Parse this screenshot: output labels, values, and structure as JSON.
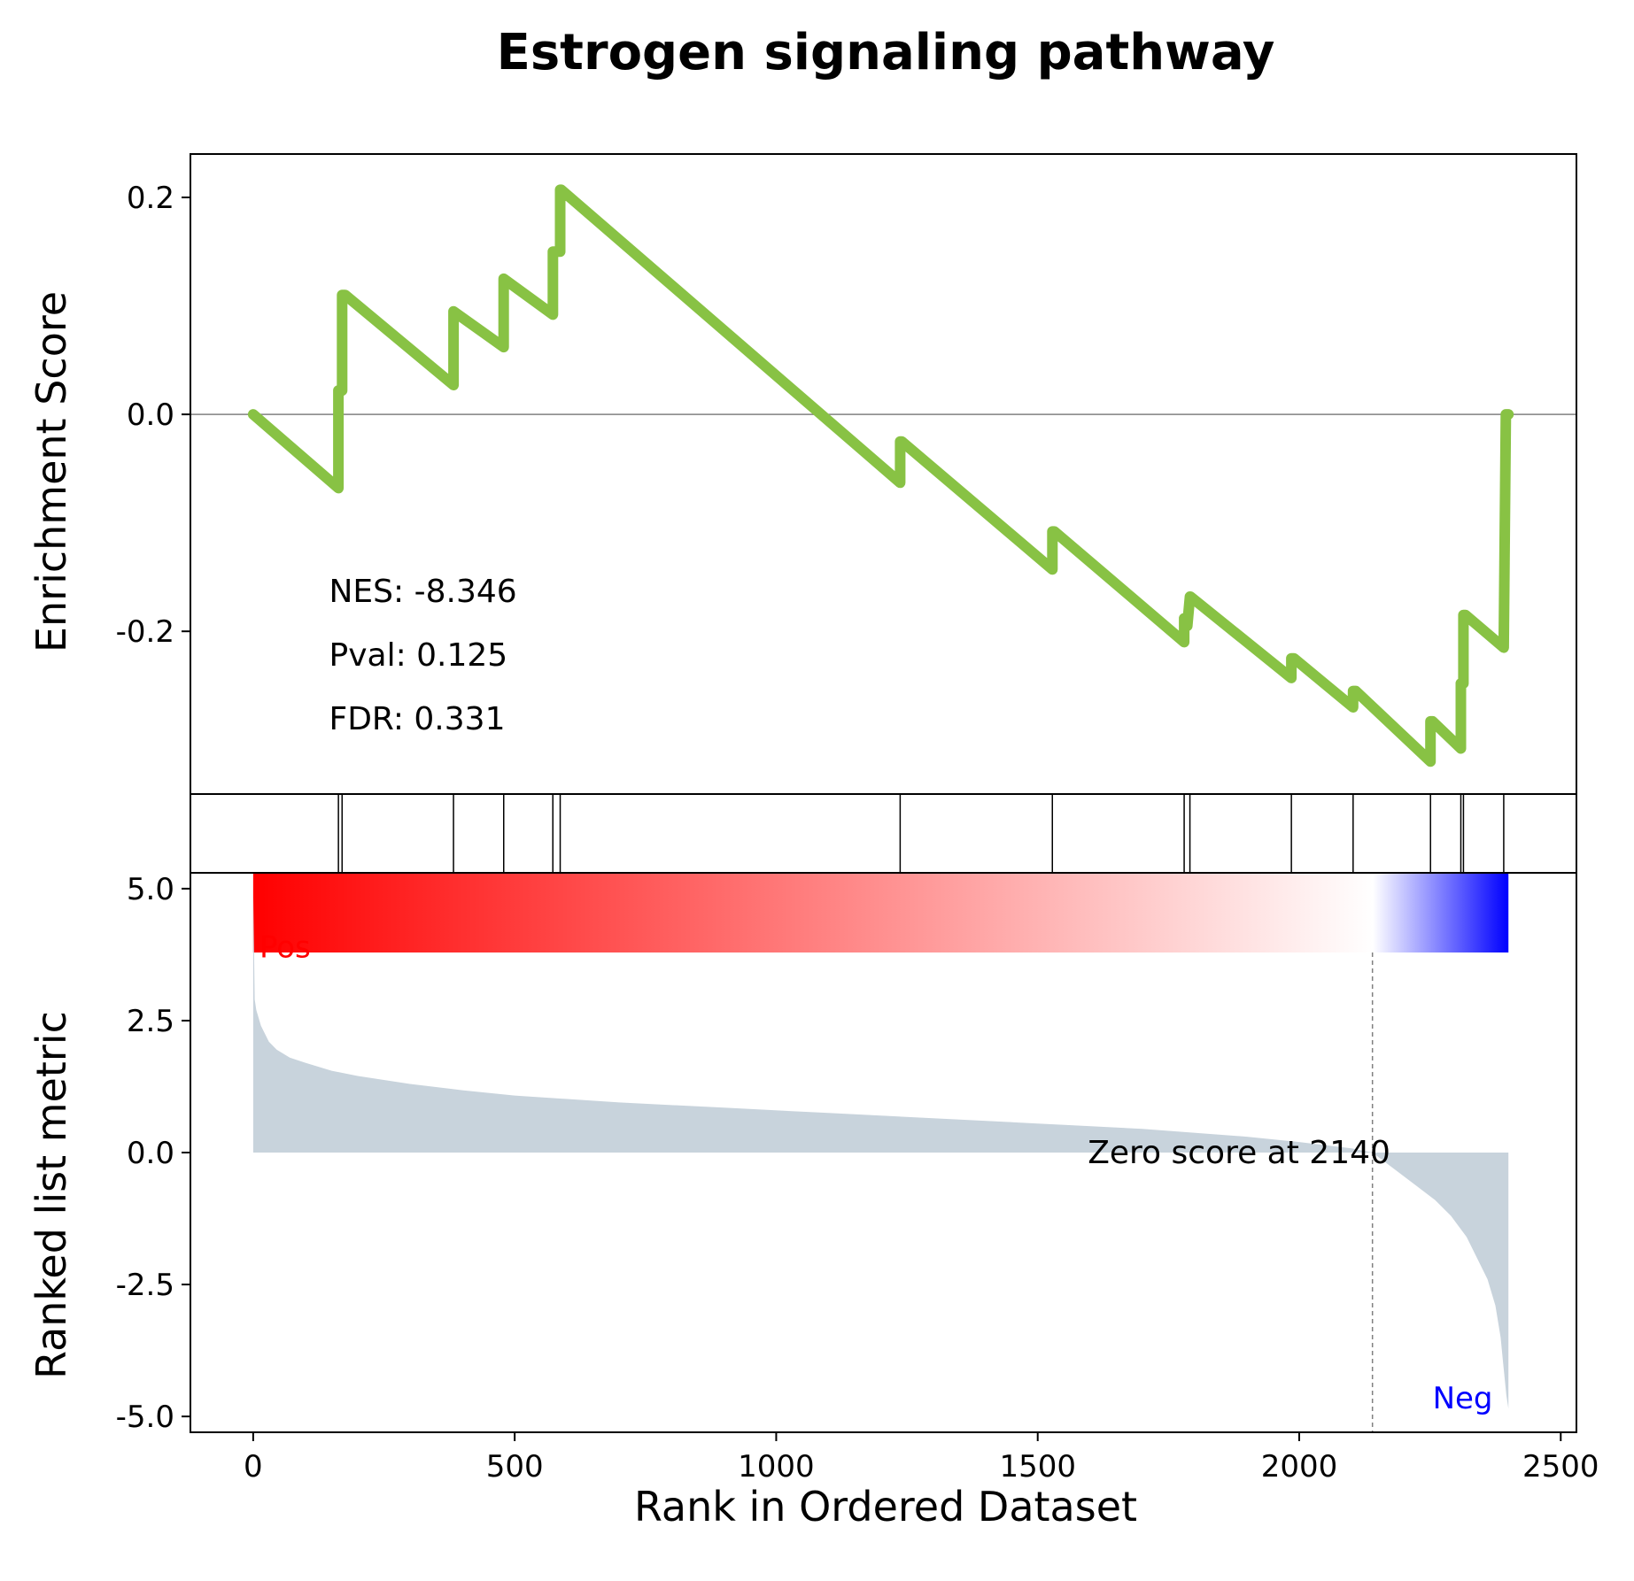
{
  "chart_data": [
    {
      "type": "line",
      "title": "Estrogen signaling pathway",
      "xlabel": "",
      "ylabel": "Enrichment Score",
      "xlim": [
        -120,
        2530
      ],
      "ylim": [
        -0.35,
        0.24
      ],
      "yticks": [
        0.2,
        0.0,
        -0.2
      ],
      "ytick_labels": [
        "0.2",
        "0.0",
        "-0.2"
      ],
      "zero_line": true,
      "series": [
        {
          "color": "#88c244",
          "x": [
            0,
            163,
            163,
            170,
            170,
            176,
            383,
            383,
            479,
            479,
            573,
            573,
            587,
            587,
            589,
            1237,
            1237,
            1240,
            1528,
            1528,
            1532,
            1780,
            1780,
            1786,
            1786,
            1791,
            1792,
            1985,
            1985,
            1990,
            2103,
            2103,
            2108,
            2251,
            2251,
            2255,
            2309,
            2309,
            2314,
            2314,
            2318,
            2391,
            2391,
            2395,
            2400
          ],
          "y": [
            0.0,
            -0.068,
            0.022,
            0.022,
            0.11,
            0.11,
            0.027,
            0.095,
            0.062,
            0.125,
            0.092,
            0.15,
            0.15,
            0.207,
            0.207,
            -0.063,
            -0.025,
            -0.025,
            -0.143,
            -0.108,
            -0.108,
            -0.21,
            -0.188,
            -0.188,
            -0.195,
            -0.168,
            -0.168,
            -0.243,
            -0.225,
            -0.225,
            -0.27,
            -0.255,
            -0.255,
            -0.32,
            -0.283,
            -0.283,
            -0.308,
            -0.248,
            -0.248,
            -0.185,
            -0.185,
            -0.215,
            -0.215,
            0.0,
            0.0
          ]
        }
      ],
      "annotations": [
        "NES: -8.346",
        "Pval: 0.125",
        "FDR: 0.331"
      ]
    },
    {
      "type": "barcode",
      "hit_ranks": [
        163,
        170,
        383,
        479,
        573,
        587,
        1237,
        1528,
        1780,
        1791,
        1985,
        2103,
        2251,
        2309,
        2314,
        2391
      ]
    },
    {
      "type": "area",
      "xlabel": "Rank in Ordered Dataset",
      "ylabel": "Ranked list metric",
      "xlim": [
        -120,
        2530
      ],
      "ylim": [
        -5.3,
        5.3
      ],
      "xticks": [
        0,
        500,
        1000,
        1500,
        2000,
        2500
      ],
      "xtick_labels": [
        "0",
        "500",
        "1000",
        "1500",
        "2000",
        "2500"
      ],
      "yticks": [
        5.0,
        2.5,
        0.0,
        -2.5,
        -5.0
      ],
      "ytick_labels": [
        "5.0",
        "2.5",
        "0.0",
        "-2.5",
        "-5.0"
      ],
      "fill_color": "#c8d3dc",
      "colorbar": [
        "#ff0000",
        "#ffffff",
        "#0000ff"
      ],
      "series": [
        {
          "x": [
            0,
            3,
            6,
            15,
            30,
            45,
            70,
            100,
            150,
            200,
            300,
            400,
            500,
            700,
            900,
            1100,
            1300,
            1500,
            1700,
            1900,
            2000,
            2100,
            2140,
            2180,
            2220,
            2260,
            2290,
            2320,
            2340,
            2360,
            2375,
            2385,
            2390,
            2396,
            2400
          ],
          "y": [
            4.95,
            2.9,
            2.7,
            2.4,
            2.1,
            1.95,
            1.8,
            1.7,
            1.55,
            1.45,
            1.3,
            1.18,
            1.08,
            0.95,
            0.85,
            0.75,
            0.65,
            0.55,
            0.45,
            0.3,
            0.2,
            0.08,
            0.0,
            -0.3,
            -0.6,
            -0.9,
            -1.2,
            -1.6,
            -2.0,
            -2.4,
            -2.9,
            -3.5,
            -4.0,
            -4.6,
            -4.85
          ]
        }
      ],
      "zero_crossing": 2140,
      "annotations": {
        "pos": "Pos",
        "neg": "Neg",
        "zero": "Zero score at 2140"
      },
      "annotation_colors": {
        "pos": "#ff0000",
        "neg": "#0000ff"
      }
    }
  ]
}
